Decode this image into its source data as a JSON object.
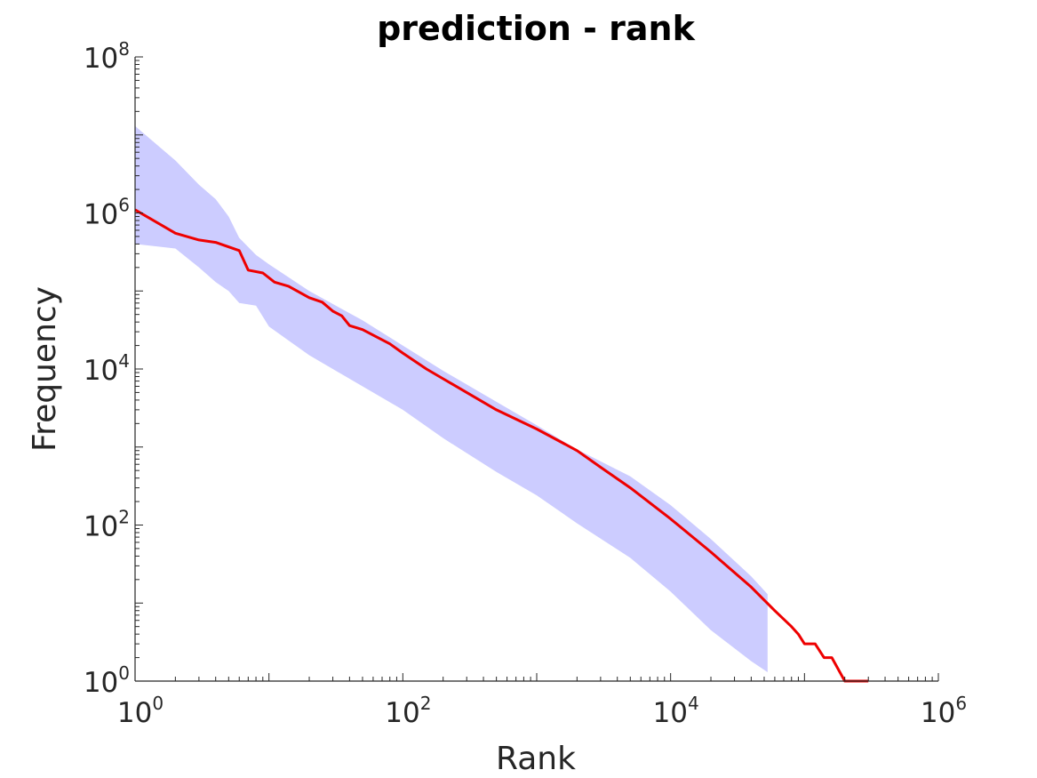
{
  "chart_data": {
    "type": "line",
    "title": "prediction - rank",
    "xlabel": "Rank",
    "ylabel": "Frequency",
    "x_scale": "log",
    "y_scale": "log",
    "xlim": [
      1,
      1000000
    ],
    "ylim": [
      1,
      100000000
    ],
    "x_ticks": [
      {
        "base": "10",
        "exp": "0",
        "value": 1
      },
      {
        "base": "10",
        "exp": "2",
        "value": 100
      },
      {
        "base": "10",
        "exp": "4",
        "value": 10000
      },
      {
        "base": "10",
        "exp": "6",
        "value": 1000000
      }
    ],
    "y_ticks": [
      {
        "base": "10",
        "exp": "0",
        "value": 1
      },
      {
        "base": "10",
        "exp": "2",
        "value": 100
      },
      {
        "base": "10",
        "exp": "4",
        "value": 10000
      },
      {
        "base": "10",
        "exp": "6",
        "value": 1000000
      },
      {
        "base": "10",
        "exp": "8",
        "value": 100000000
      }
    ],
    "grid": false,
    "legend": "none",
    "series": [
      {
        "kind": "band",
        "color": "#ccccff",
        "x": [
          1,
          2,
          3,
          4,
          5,
          6,
          8,
          10,
          20,
          50,
          100,
          200,
          500,
          1000,
          2000,
          5000,
          10000,
          20000,
          40000,
          53000
        ],
        "upper": [
          13000000,
          4700000,
          2300000,
          1500000,
          900000,
          480000,
          290000,
          220000,
          100000,
          42000,
          20000,
          9500,
          3800,
          1900,
          930,
          420,
          180,
          66,
          22,
          13
        ],
        "lower": [
          400000,
          350000,
          200000,
          130000,
          100000,
          70000,
          65000,
          35000,
          15000,
          6000,
          3000,
          1300,
          480,
          240,
          105,
          38,
          14,
          4.5,
          1.8,
          1.3
        ]
      },
      {
        "kind": "line",
        "color": "#ee0000",
        "x": [
          1,
          2,
          3,
          4,
          6,
          7,
          9,
          11,
          14,
          20,
          25,
          30,
          35,
          40,
          50,
          80,
          100,
          150,
          200,
          300,
          500,
          1000,
          2000,
          3000,
          5000,
          10000,
          20000,
          40000,
          60000,
          80000,
          90000,
          100000,
          120000,
          140000,
          160000,
          200000,
          250000,
          300000
        ],
        "y": [
          1100000,
          550000,
          450000,
          420000,
          330000,
          185000,
          170000,
          130000,
          115000,
          82000,
          72000,
          55000,
          48000,
          36000,
          32000,
          21000,
          16000,
          10000,
          7500,
          5000,
          3000,
          1700,
          900,
          550,
          300,
          120,
          45,
          16,
          8,
          5,
          4,
          3,
          3,
          2,
          2,
          1,
          1,
          1
        ]
      }
    ]
  }
}
